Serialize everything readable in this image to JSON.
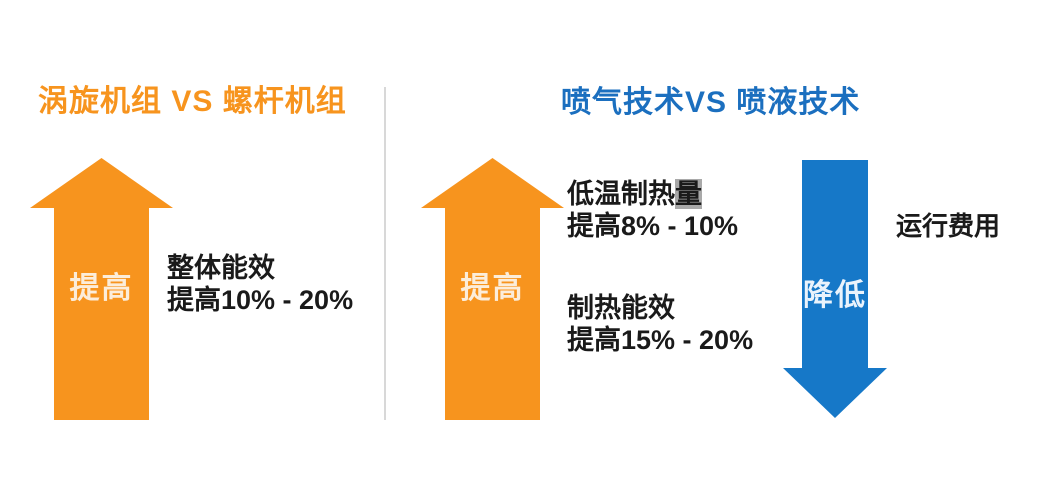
{
  "colors": {
    "orange": "#F7941E",
    "blue_arrow": "#1678C8",
    "blue_title": "#1B6FBF",
    "divider": "#D8D8D8",
    "text": "#1A1A1A",
    "arrow_label_on_orange": "#FCEDDA",
    "arrow_label_on_blue": "#EAF3FC",
    "highlight_bg": "#A9A9A9"
  },
  "left_section": {
    "title": "涡旋机组 VS 螺杆机组",
    "up_arrow_label": "提高",
    "metric": {
      "line1": "整体能效",
      "line2": "提高10% - 20%"
    }
  },
  "right_section": {
    "title": "喷气技术VS 喷液技术",
    "up_arrow_label": "提高",
    "metric1": {
      "line1_prefix": "低温制热",
      "line1_highlight": "量",
      "line2": "提高8% - 10%"
    },
    "metric2": {
      "line1": "制热能效",
      "line2": "提高15% - 20%"
    },
    "down_arrow_label": "降低",
    "down_metric": "运行费用"
  }
}
